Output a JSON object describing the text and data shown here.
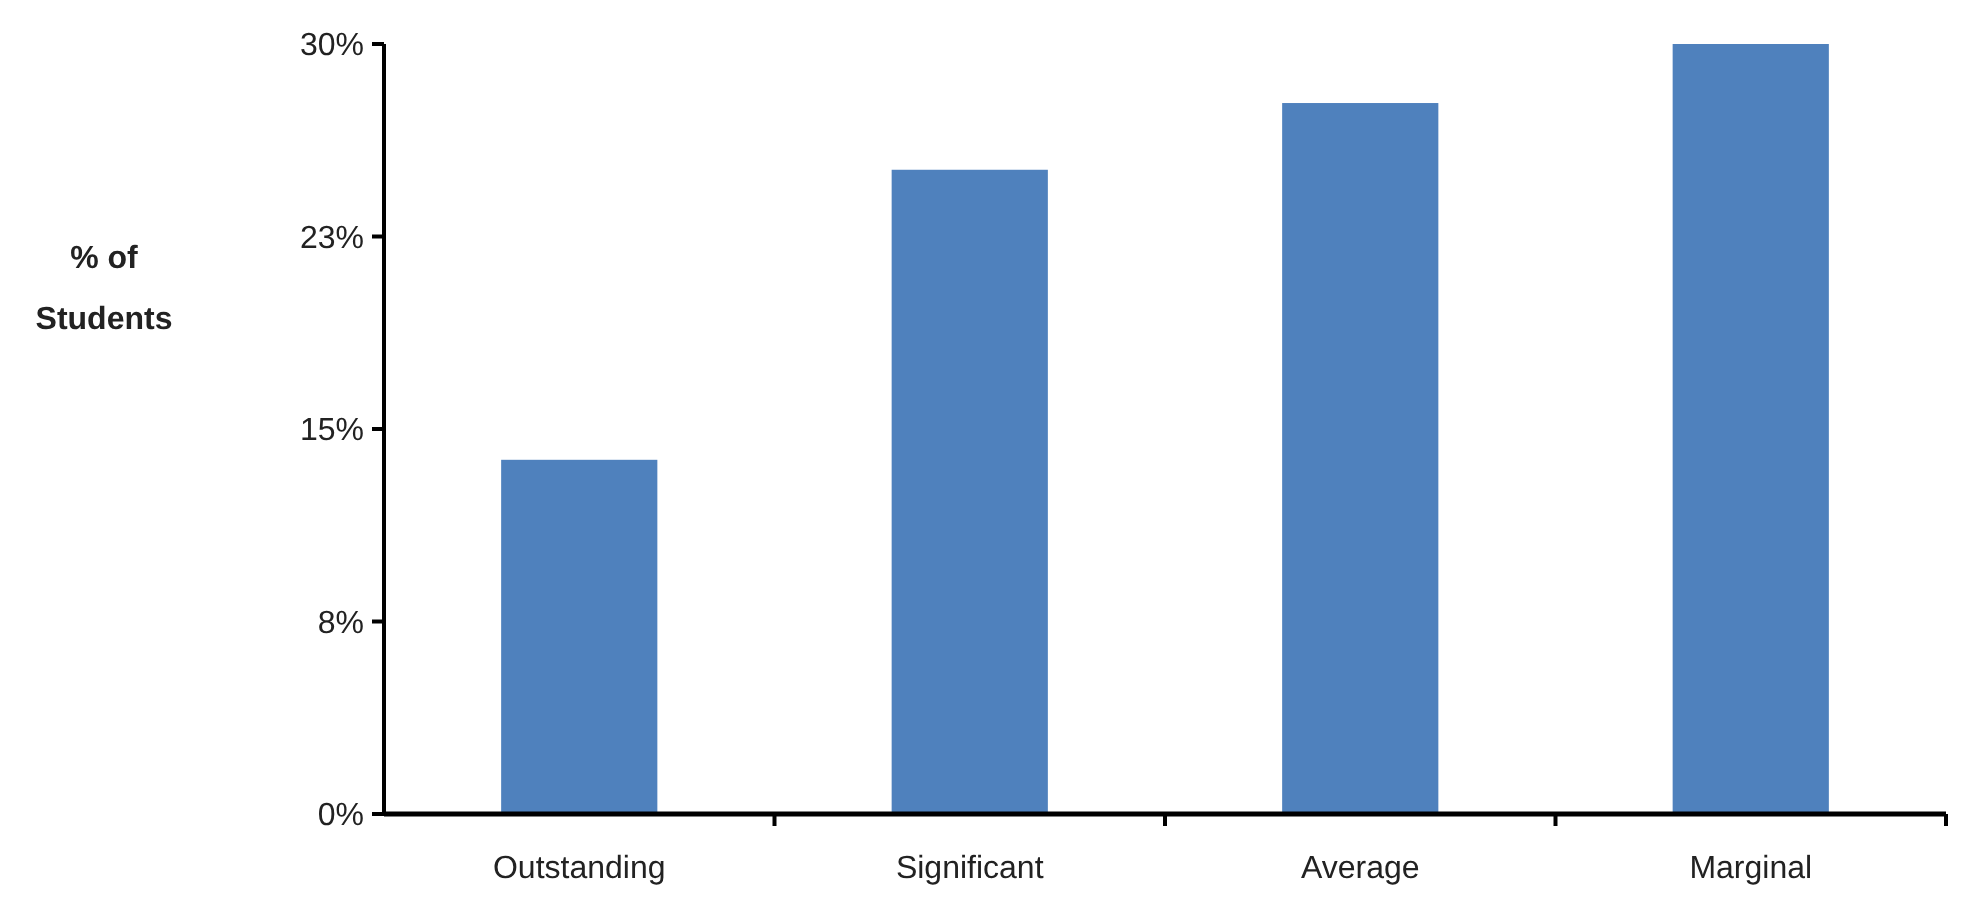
{
  "chart_data": {
    "type": "bar",
    "ylabel": "% of Students",
    "categories": [
      "Outstanding",
      "Significant",
      "Average",
      "Marginal"
    ],
    "values": [
      13.8,
      25.1,
      27.7,
      30
    ],
    "color": "#4f81bd",
    "ylim": [
      0,
      30
    ],
    "yticks": [
      {
        "value": 0,
        "label": "0%"
      },
      {
        "value": 7.5,
        "label": "8%"
      },
      {
        "value": 15,
        "label": "15%"
      },
      {
        "value": 22.5,
        "label": "23%"
      },
      {
        "value": 30,
        "label": "30%"
      }
    ],
    "grid": false
  }
}
